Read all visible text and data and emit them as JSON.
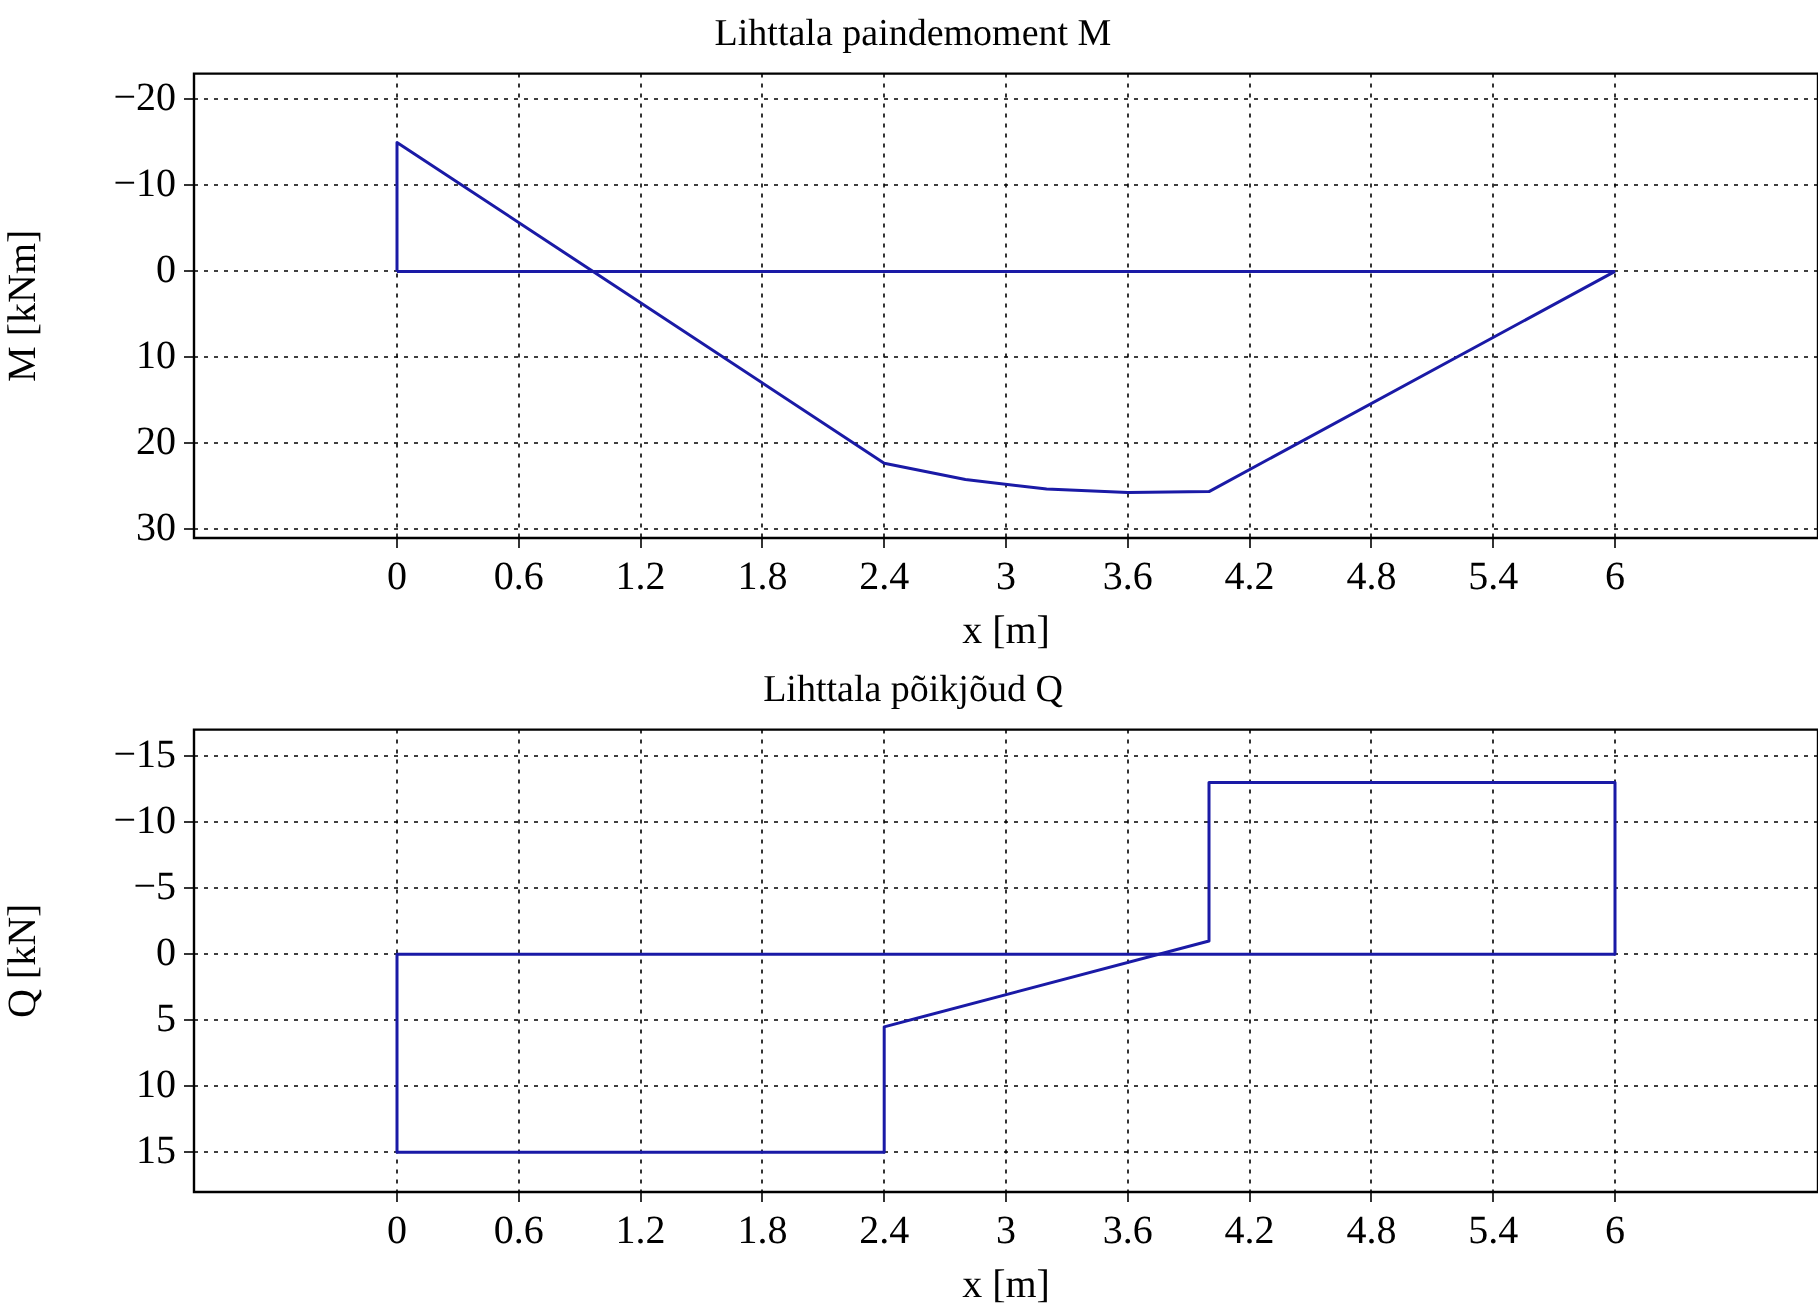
{
  "chart_data": [
    {
      "type": "line",
      "title": "Lihttala paindemoment M",
      "xlabel": "x [m]",
      "ylabel": "M [kNm]",
      "series": [
        {
          "color": "#1a1aa6",
          "x": [
            0,
            0,
            2.4,
            2.8,
            3.2,
            3.6,
            4.0,
            6
          ],
          "values": [
            0,
            -15,
            22.3,
            24.2,
            25.3,
            25.7,
            25.6,
            0
          ]
        },
        {
          "color": "#1a1aa6",
          "x": [
            0,
            6
          ],
          "values": [
            0,
            0
          ]
        }
      ],
      "xlim": [
        -1,
        7
      ],
      "xticks": [
        0,
        0.6,
        1.2,
        1.8,
        2.4,
        3,
        3.6,
        4.2,
        4.8,
        5.4,
        6
      ],
      "ylim": [
        31,
        -23
      ],
      "yticks": [
        -20,
        -10,
        0,
        10,
        20,
        30
      ],
      "grid": true,
      "marker": "none"
    },
    {
      "type": "line",
      "title": "Lihttala põikjõud Q",
      "xlabel": "x [m]",
      "ylabel": "Q [kN]",
      "series": [
        {
          "color": "#1a1aa6",
          "x": [
            0,
            0,
            2.4,
            2.4,
            4,
            4,
            6,
            6
          ],
          "values": [
            0,
            15,
            15,
            5.5,
            -1,
            -13,
            -13,
            0
          ]
        },
        {
          "color": "#1a1aa6",
          "x": [
            0,
            6
          ],
          "values": [
            0,
            0
          ]
        }
      ],
      "xlim": [
        -1,
        7
      ],
      "xticks": [
        0,
        0.6,
        1.2,
        1.8,
        2.4,
        3,
        3.6,
        4.2,
        4.8,
        5.4,
        6
      ],
      "ylim": [
        18,
        -17
      ],
      "yticks": [
        -15,
        -10,
        -5,
        0,
        5,
        10,
        15
      ],
      "grid": true,
      "marker": "none"
    }
  ]
}
